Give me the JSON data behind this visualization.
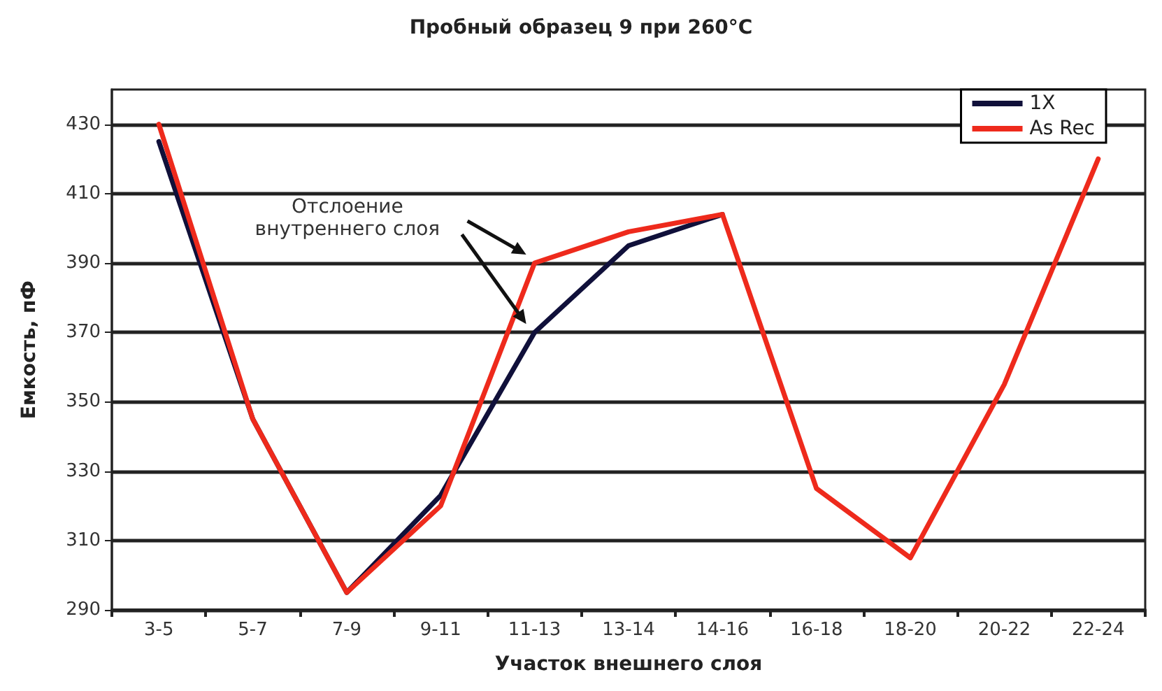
{
  "chart_data": {
    "type": "line",
    "title": "Пробный образец 9 при 260°C",
    "xlabel": "Участок внешнего слоя",
    "ylabel": "Емкость, пФ",
    "categories": [
      "3-5",
      "5-7",
      "7-9",
      "9-11",
      "11-13",
      "13-14",
      "14-16",
      "16-18",
      "18-20",
      "20-22",
      "22-24"
    ],
    "series": [
      {
        "name": "1X",
        "color": "#10103a",
        "values": [
          425,
          345,
          295,
          323,
          370,
          395,
          404,
          null,
          null,
          null,
          null
        ]
      },
      {
        "name": "As Rec",
        "color": "#ee2a1c",
        "values": [
          430,
          345,
          295,
          320,
          390,
          399,
          404,
          325,
          305,
          355,
          420
        ]
      }
    ],
    "ylim": [
      290,
      440
    ],
    "yticks": [
      290,
      310,
      330,
      350,
      370,
      390,
      410,
      430
    ],
    "grid": "y",
    "legend": "top right",
    "marker": "none",
    "line_style": "solid",
    "annotations": [
      "Отслоение внутреннего слоя"
    ]
  }
}
